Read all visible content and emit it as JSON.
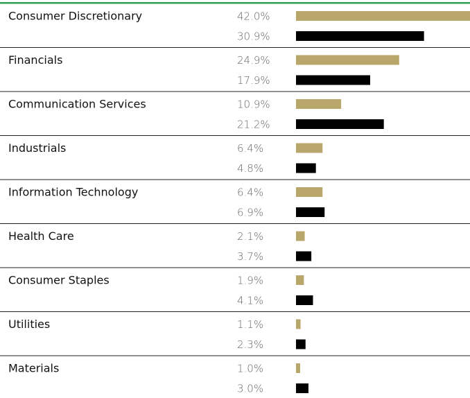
{
  "chart_data": {
    "type": "bar",
    "orientation": "horizontal",
    "categories": [
      "Consumer Discretionary",
      "Financials",
      "Communication Services",
      "Industrials",
      "Information Technology",
      "Health Care",
      "Consumer Staples",
      "Utilities",
      "Materials"
    ],
    "series": [
      {
        "color": "#b9a66b",
        "values": [
          42.0,
          24.9,
          10.9,
          6.4,
          6.4,
          2.1,
          1.9,
          1.1,
          1.0
        ],
        "value_labels": [
          "42.0%",
          "24.9%",
          "10.9%",
          "6.4%",
          "6.4%",
          "2.1%",
          "1.9%",
          "1.1%",
          "1.0%"
        ]
      },
      {
        "color": "#000000",
        "values": [
          30.9,
          17.9,
          21.2,
          4.8,
          6.9,
          3.7,
          4.1,
          2.3,
          3.0
        ],
        "value_labels": [
          "30.9%",
          "17.9%",
          "21.2%",
          "4.8%",
          "6.9%",
          "3.7%",
          "4.1%",
          "2.3%",
          "3.0%"
        ]
      }
    ]
  }
}
